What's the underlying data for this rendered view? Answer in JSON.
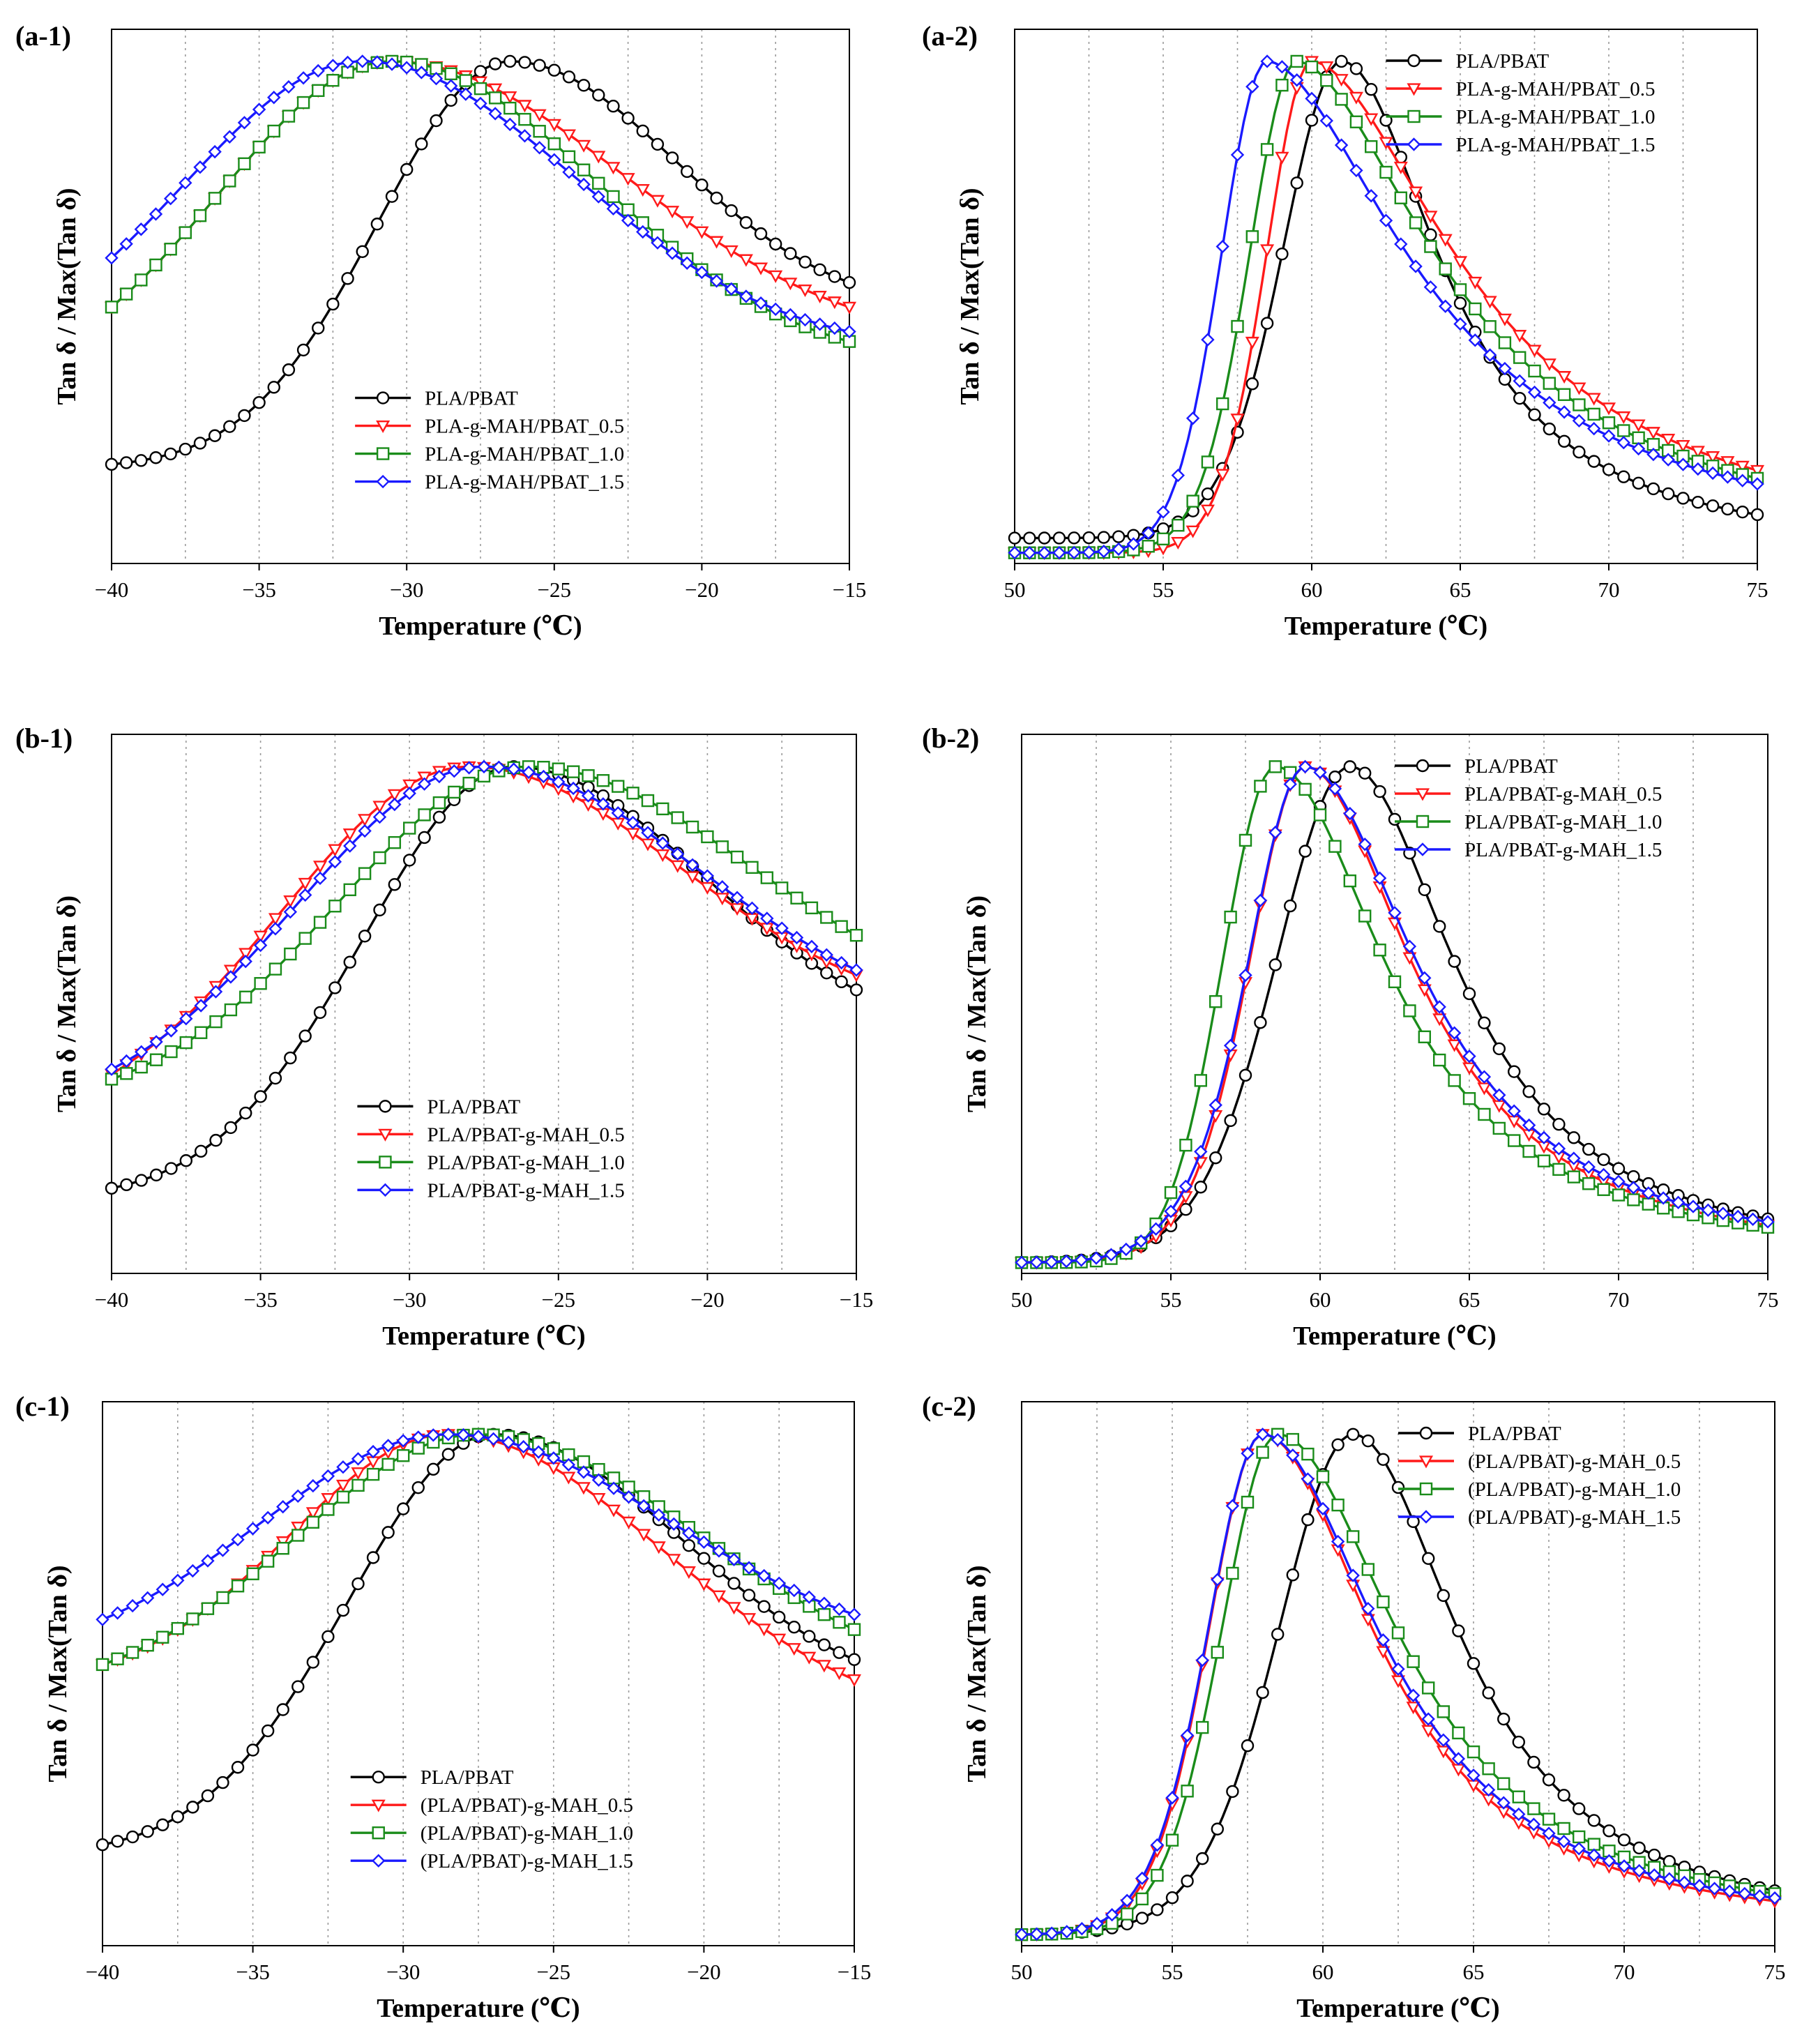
{
  "colors": {
    "black": "#000000",
    "red": "#ff1a1a",
    "green": "#1a8c1a",
    "blue": "#1a1aff"
  },
  "y_axis_label": "Tan δ / Max(Tan δ)",
  "x_axis_label": "Temperature (℃)",
  "chart_data": [
    {
      "id": "a-1",
      "panel_label": "(a-1)",
      "type": "line",
      "xlabel": "Temperature (℃)",
      "ylabel": "Tan δ / Max(Tan δ)",
      "xlim": [
        -40,
        -15
      ],
      "xticks": [
        -40,
        -35,
        -30,
        -25,
        -20,
        -15
      ],
      "tick_labels": [
        "−40",
        "−35",
        "−30",
        "−25",
        "−20",
        "−15"
      ],
      "grid": "vertical dotted",
      "legend_position": "lower-center",
      "series": [
        {
          "name": "PLA/PBAT",
          "color": "#000000",
          "marker": "circle",
          "peak": -26.5,
          "y_left": 0.18,
          "y_right": 0.55,
          "sl": 6.3,
          "sr": 7.9,
          "pl": 1.5,
          "pr": 1.5
        },
        {
          "name": "PLA-g-MAH/PBAT_0.5",
          "color": "#ff1a1a",
          "marker": "triangle-down",
          "peak": -30.5,
          "y_left": 0.5,
          "y_right": 0.5,
          "sl": 8.3,
          "sr": 11.0,
          "pl": 1.5,
          "pr": 1.4
        },
        {
          "name": "PLA-g-MAH/PBAT_1.0",
          "color": "#1a8c1a",
          "marker": "square",
          "peak": -30.5,
          "y_left": 0.5,
          "y_right": 0.43,
          "sl": 8.3,
          "sr": 9.8,
          "pl": 1.5,
          "pr": 1.5
        },
        {
          "name": "PLA-g-MAH/PBAT_1.5",
          "color": "#1a1aff",
          "marker": "diamond",
          "peak": -31.5,
          "y_left": 0.6,
          "y_right": 0.45,
          "sl": 8.6,
          "sr": 10.1,
          "pl": 1.4,
          "pr": 1.5
        }
      ]
    },
    {
      "id": "a-2",
      "panel_label": "(a-2)",
      "type": "line",
      "xlabel": "Temperature (℃)",
      "ylabel": "Tan δ / Max(Tan δ)",
      "xlim": [
        50,
        75
      ],
      "xticks": [
        50,
        55,
        60,
        65,
        70,
        75
      ],
      "tick_labels": [
        "50",
        "55",
        "60",
        "65",
        "70",
        "75"
      ],
      "grid": "vertical dotted",
      "legend_position": "top-right",
      "series": [
        {
          "name": "PLA/PBAT",
          "color": "#000000",
          "marker": "circle",
          "peak": 61.0,
          "floor": 0.03,
          "w1": 2.4,
          "w2": 3.3,
          "w3": 5.6,
          "base": 0.0,
          "pr": 2.0
        },
        {
          "name": "PLA-g-MAH/PBAT_0.5",
          "color": "#ff1a1a",
          "marker": "triangle-down",
          "peak": 60.0,
          "floor": 0.0,
          "w1": 1.9,
          "w2": 2.5,
          "w3": 8.8,
          "base": 0.0,
          "pr": 1.8
        },
        {
          "name": "PLA-g-MAH/PBAT_1.0",
          "color": "#1a8c1a",
          "marker": "square",
          "peak": 59.5,
          "floor": 0.0,
          "w1": 2.0,
          "w2": 2.6,
          "w3": 8.5,
          "base": 0.0,
          "pr": 1.8
        },
        {
          "name": "PLA-g-MAH/PBAT_1.5",
          "color": "#1a1aff",
          "marker": "diamond",
          "peak": 58.5,
          "floor": 0.0,
          "w1": 2.0,
          "w2": 2.4,
          "w3": 8.6,
          "base": 0.0,
          "pr": 1.8
        }
      ]
    },
    {
      "id": "b-1",
      "panel_label": "(b-1)",
      "type": "line",
      "xlabel": "Temperature (℃)",
      "ylabel": "Tan δ / Max(Tan δ)",
      "xlim": [
        -40,
        -15
      ],
      "xticks": [
        -40,
        -35,
        -30,
        -25,
        -20,
        -15
      ],
      "tick_labels": [
        "−40",
        "−35",
        "−30",
        "−25",
        "−20",
        "−15"
      ],
      "grid": "vertical dotted",
      "legend_position": "lower-center",
      "series": [
        {
          "name": "PLA/PBAT",
          "color": "#000000",
          "marker": "circle",
          "peak": -26.5,
          "y_left": 0.15,
          "y_right": 0.55,
          "sl": 7.1,
          "sr": 9.0,
          "pl": 1.5,
          "pr": 1.5
        },
        {
          "name": "PLA/PBAT-g-MAH_0.5",
          "color": "#ff1a1a",
          "marker": "triangle-down",
          "peak": -28.0,
          "y_left": 0.38,
          "y_right": 0.58,
          "sl": 8.9,
          "sr": 10.0,
          "pl": 1.5,
          "pr": 1.4
        },
        {
          "name": "PLA/PBAT-g-MAH_1.0",
          "color": "#1a8c1a",
          "marker": "square",
          "peak": -26.0,
          "y_left": 0.37,
          "y_right": 0.66,
          "sl": 9.0,
          "sr": 10.6,
          "pl": 1.5,
          "pr": 1.4
        },
        {
          "name": "PLA/PBAT-g-MAH_1.5",
          "color": "#1a1aff",
          "marker": "diamond",
          "peak": -27.5,
          "y_left": 0.39,
          "y_right": 0.59,
          "sl": 8.9,
          "sr": 10.2,
          "pl": 1.5,
          "pr": 1.4
        }
      ]
    },
    {
      "id": "b-2",
      "panel_label": "(b-2)",
      "type": "line",
      "xlabel": "Temperature (℃)",
      "ylabel": "Tan δ / Max(Tan δ)",
      "xlim": [
        50,
        75
      ],
      "xticks": [
        50,
        55,
        60,
        65,
        70,
        75
      ],
      "tick_labels": [
        "50",
        "55",
        "60",
        "65",
        "70",
        "75"
      ],
      "grid": "vertical dotted",
      "legend_position": "top-right",
      "series": [
        {
          "name": "PLA/PBAT",
          "color": "#000000",
          "marker": "circle",
          "peak": 61.0,
          "floor": 0.0,
          "w1": 3.0,
          "w2": 4.2,
          "w3": 6.0,
          "base": 0.0,
          "pr": 2.0
        },
        {
          "name": "PLA/PBAT-g-MAH_0.5",
          "color": "#ff1a1a",
          "marker": "triangle-down",
          "peak": 59.5,
          "floor": 0.0,
          "w1": 2.2,
          "w2": 3.3,
          "w3": 6.1,
          "base": 0.0,
          "pr": 2.0
        },
        {
          "name": "PLA/PBAT-g-MAH_1.0",
          "color": "#1a8c1a",
          "marker": "square",
          "peak": 58.5,
          "floor": 0.0,
          "w1": 2.4,
          "w2": 2.6,
          "w3": 6.3,
          "base": 0.0,
          "pr": 2.0
        },
        {
          "name": "PLA/PBAT-g-MAH_1.5",
          "color": "#1a1aff",
          "marker": "diamond",
          "peak": 59.5,
          "floor": 0.0,
          "w1": 2.2,
          "w2": 3.5,
          "w3": 6.4,
          "base": 0.0,
          "pr": 2.0
        }
      ]
    },
    {
      "id": "c-1",
      "panel_label": "(c-1)",
      "type": "line",
      "xlabel": "Temperature (℃)",
      "ylabel": "Tan δ / Max(Tan δ)",
      "xlim": [
        -40,
        -15
      ],
      "xticks": [
        -40,
        -35,
        -30,
        -25,
        -20,
        -15
      ],
      "tick_labels": [
        "−40",
        "−35",
        "−30",
        "−25",
        "−20",
        "−15"
      ],
      "grid": "vertical dotted",
      "legend_position": "lower-center",
      "series": [
        {
          "name": "PLA/PBAT",
          "color": "#000000",
          "marker": "circle",
          "peak": -27.0,
          "y_left": 0.18,
          "y_right": 0.55,
          "sl": 6.8,
          "sr": 8.9,
          "pl": 1.5,
          "pr": 1.5
        },
        {
          "name": "(PLA/PBAT)-g-MAH_0.5",
          "color": "#ff1a1a",
          "marker": "triangle-down",
          "peak": -28.5,
          "y_left": 0.54,
          "y_right": 0.51,
          "sl": 7.4,
          "sr": 10.1,
          "pl": 1.5,
          "pr": 1.5
        },
        {
          "name": "(PLA/PBAT)-g-MAH_1.0",
          "color": "#1a8c1a",
          "marker": "square",
          "peak": -27.5,
          "y_left": 0.54,
          "y_right": 0.61,
          "sl": 8.6,
          "sr": 10.4,
          "pl": 1.5,
          "pr": 1.5
        },
        {
          "name": "(PLA/PBAT)-g-MAH_1.5",
          "color": "#1a1aff",
          "marker": "diamond",
          "peak": -28.5,
          "y_left": 0.63,
          "y_right": 0.64,
          "sl": 8.9,
          "sr": 10.4,
          "pl": 1.5,
          "pr": 1.5
        }
      ]
    },
    {
      "id": "c-2",
      "panel_label": "(c-2)",
      "type": "line",
      "xlabel": "Temperature (℃)",
      "ylabel": "Tan δ / Max(Tan δ)",
      "xlim": [
        50,
        75
      ],
      "xticks": [
        50,
        55,
        60,
        65,
        70,
        75
      ],
      "tick_labels": [
        "50",
        "55",
        "60",
        "65",
        "70",
        "75"
      ],
      "grid": "vertical dotted",
      "legend_position": "top-right",
      "series": [
        {
          "name": "PLA/PBAT",
          "color": "#000000",
          "marker": "circle",
          "peak": 61.0,
          "floor": 0.0,
          "w1": 3.0,
          "w2": 4.2,
          "w3": 6.0,
          "base": 0.0,
          "pr": 2.0
        },
        {
          "name": "(PLA/PBAT)-g-MAH_0.5",
          "color": "#ff1a1a",
          "marker": "triangle-down",
          "peak": 58.0,
          "floor": 0.0,
          "w1": 2.2,
          "w2": 3.0,
          "w3": 6.3,
          "base": 0.0,
          "pr": 2.0
        },
        {
          "name": "(PLA/PBAT)-g-MAH_1.0",
          "color": "#1a8c1a",
          "marker": "square",
          "peak": 58.5,
          "floor": 0.0,
          "w1": 2.3,
          "w2": 3.1,
          "w3": 6.8,
          "base": 0.0,
          "pr": 2.0
        },
        {
          "name": "(PLA/PBAT)-g-MAH_1.5",
          "color": "#1a1aff",
          "marker": "diamond",
          "peak": 58.0,
          "floor": 0.0,
          "w1": 2.2,
          "w2": 3.1,
          "w3": 6.6,
          "base": 0.0,
          "pr": 2.0
        }
      ]
    }
  ]
}
